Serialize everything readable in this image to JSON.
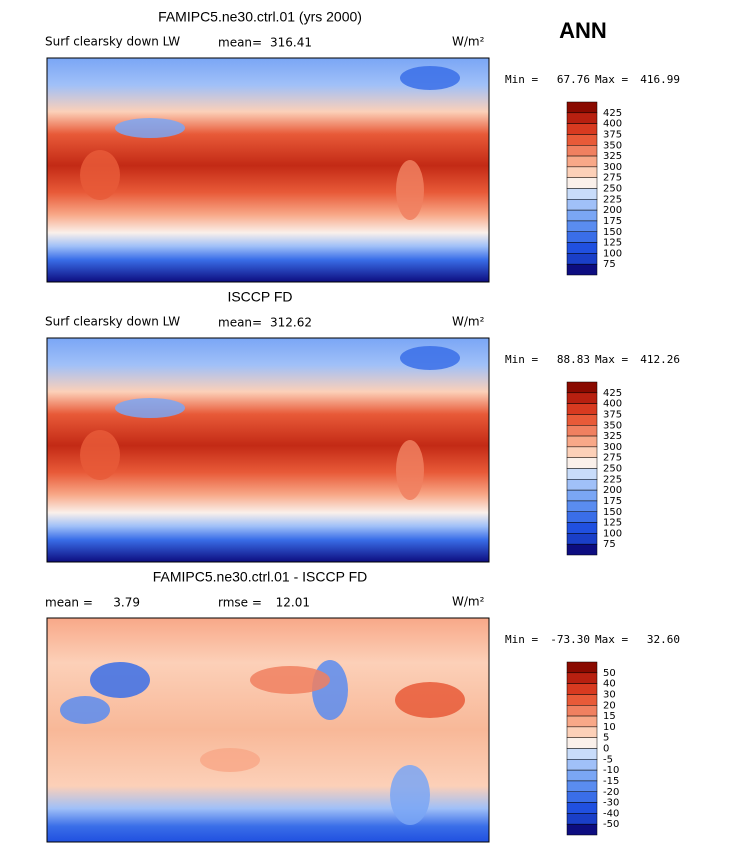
{
  "header": {
    "season": "ANN"
  },
  "panels": [
    {
      "title": "FAMIPC5.ne30.ctrl.01 (yrs 2000)",
      "variable": "Surf clearsky down LW",
      "stat1_label": "mean=",
      "stat1": "316.41",
      "units": "W/m²",
      "min_label": "Min =",
      "min": "67.76",
      "max_label": "Max =",
      "max": "416.99",
      "levels": [
        425,
        400,
        375,
        350,
        325,
        300,
        275,
        250,
        225,
        200,
        175,
        150,
        125,
        100,
        75
      ],
      "colors": [
        "#8a0a00",
        "#b82010",
        "#d83a20",
        "#e85a38",
        "#f08060",
        "#f8a888",
        "#fcd0b8",
        "#faf0ea",
        "#c8dcfa",
        "#a0c0f8",
        "#7aa6f5",
        "#5a8cf0",
        "#3a6ee8",
        "#2050e0",
        "#1a3fc8",
        "#0d0d80"
      ]
    },
    {
      "title": "ISCCP FD",
      "variable": "Surf clearsky down LW",
      "stat1_label": "mean=",
      "stat1": "312.62",
      "units": "W/m²",
      "min_label": "Min =",
      "min": "88.83",
      "max_label": "Max =",
      "max": "412.26",
      "levels": [
        425,
        400,
        375,
        350,
        325,
        300,
        275,
        250,
        225,
        200,
        175,
        150,
        125,
        100,
        75
      ],
      "colors": [
        "#8a0a00",
        "#b82010",
        "#d83a20",
        "#e85a38",
        "#f08060",
        "#f8a888",
        "#fcd0b8",
        "#faf0ea",
        "#c8dcfa",
        "#a0c0f8",
        "#7aa6f5",
        "#5a8cf0",
        "#3a6ee8",
        "#2050e0",
        "#1a3fc8",
        "#0d0d80"
      ]
    },
    {
      "title": "FAMIPC5.ne30.ctrl.01 - ISCCP FD",
      "stat1_label": "mean =",
      "stat1": "3.79",
      "stat2_label": "rmse =",
      "stat2": "12.01",
      "units": "W/m²",
      "min_label": "Min =",
      "min": "-73.30",
      "max_label": "Max =",
      "max": "32.60",
      "levels": [
        50,
        40,
        30,
        20,
        15,
        10,
        5,
        0,
        -5,
        -10,
        -15,
        -20,
        -30,
        -40,
        -50
      ],
      "colors": [
        "#8a0a00",
        "#b82010",
        "#d83a20",
        "#e85a38",
        "#f08060",
        "#f8a888",
        "#fcd0b8",
        "#faf0ea",
        "#c8dcfa",
        "#a0c0f8",
        "#7aa6f5",
        "#5a8cf0",
        "#3a6ee8",
        "#2050e0",
        "#1a3fc8",
        "#0d0d80"
      ]
    }
  ]
}
